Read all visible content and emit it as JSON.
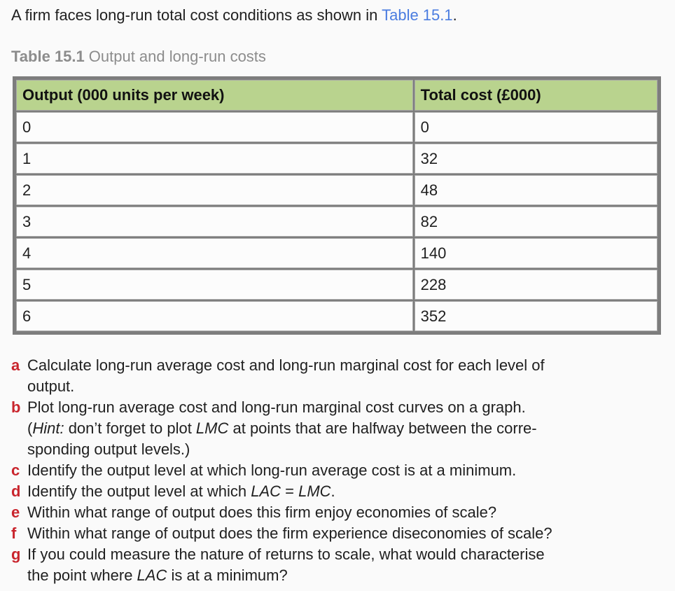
{
  "colors": {
    "page_bg": "#fafafa",
    "text_color": "#1f1f1f",
    "accent_red": "#c9252d",
    "link_blue": "#4a7ce0",
    "caption_gray": "#8c8c8c",
    "header_green": "#b9d38e",
    "border_gray": "#7d7d7d",
    "cell_bg": "#fcfcfc"
  },
  "intro": {
    "segments": [
      {
        "text": "A firm faces long-run total cost conditions as shown in "
      },
      {
        "text": "Table 15.1",
        "link": true
      },
      {
        "text": "."
      }
    ]
  },
  "caption": {
    "label": "Table 15.1",
    "text": "Output and long-run costs"
  },
  "table": {
    "headers": [
      "Output (000 units per week)",
      "Total cost (£000)"
    ],
    "rows": [
      [
        "0",
        "0"
      ],
      [
        "1",
        "32"
      ],
      [
        "2",
        "48"
      ],
      [
        "3",
        "82"
      ],
      [
        "4",
        "140"
      ],
      [
        "5",
        "228"
      ],
      [
        "6",
        "352"
      ]
    ]
  },
  "questions": [
    {
      "letter": "a",
      "segments": [
        {
          "text": "Calculate long-run average cost and long-run marginal cost for each level of"
        },
        {
          "break": true
        },
        {
          "text": "output."
        }
      ]
    },
    {
      "letter": "b",
      "segments": [
        {
          "text": "Plot long-run average cost and long-run marginal cost curves on a graph."
        },
        {
          "break": true
        },
        {
          "text": "("
        },
        {
          "text": "Hint:",
          "italic": true
        },
        {
          "text": " don’t forget to plot "
        },
        {
          "text": "LMC",
          "italic": true
        },
        {
          "text": " at points that are halfway between the corre-"
        },
        {
          "break": true
        },
        {
          "text": "sponding output levels.)"
        }
      ]
    },
    {
      "letter": "c",
      "segments": [
        {
          "text": "Identify the output level at which long-run average cost is at a minimum."
        }
      ]
    },
    {
      "letter": "d",
      "segments": [
        {
          "text": "Identify the output level at which "
        },
        {
          "text": "LAC",
          "italic": true
        },
        {
          "text": " = "
        },
        {
          "text": "LMC",
          "italic": true
        },
        {
          "text": "."
        }
      ]
    },
    {
      "letter": "e",
      "segments": [
        {
          "text": "Within what range of output does this firm enjoy economies of scale?"
        }
      ]
    },
    {
      "letter": "f",
      "segments": [
        {
          "text": "Within what range of output does the firm experience diseconomies of scale?"
        }
      ]
    },
    {
      "letter": "g",
      "segments": [
        {
          "text": "If you could measure the nature of returns to scale, what would characterise"
        },
        {
          "break": true
        },
        {
          "text": "the point where "
        },
        {
          "text": "LAC",
          "italic": true
        },
        {
          "text": " is at a minimum?"
        }
      ]
    }
  ]
}
